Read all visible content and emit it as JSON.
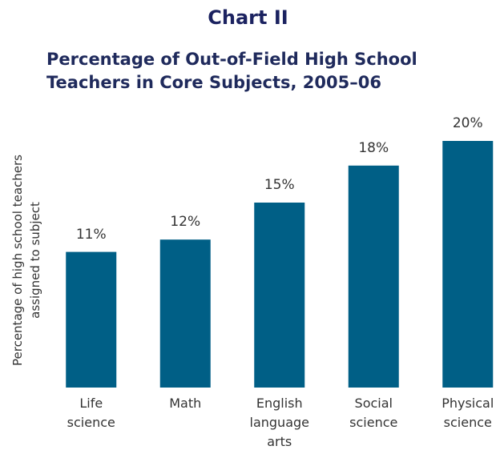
{
  "chart_data": {
    "type": "bar",
    "heading": "Chart II",
    "title": "Percentage of Out-of-Field High School\nTeachers in Core Subjects, 2005–06",
    "ylabel": "Percentage of high school teachers\nassigned to subject",
    "categories": [
      "Life\nscience",
      "Math",
      "English\nlanguage\narts",
      "Social\nscience",
      "Physical\nscience"
    ],
    "values": [
      11,
      12,
      15,
      18,
      20
    ],
    "value_labels": [
      "11%",
      "12%",
      "15%",
      "18%",
      "20%"
    ],
    "color": "#005f86"
  }
}
